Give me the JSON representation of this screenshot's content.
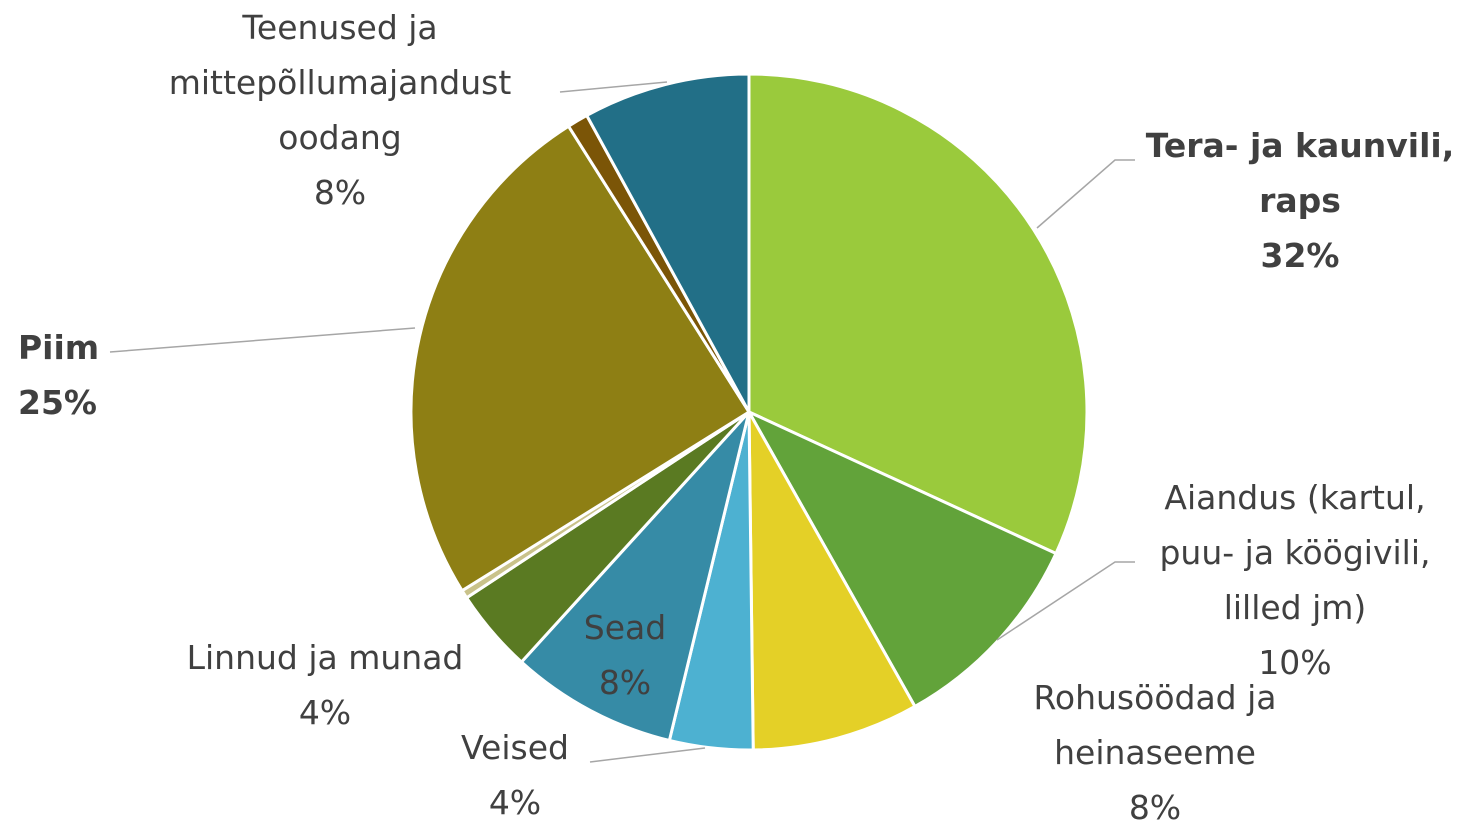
{
  "chart_data": {
    "type": "pie",
    "categories": [
      "Tera- ja kaunvili, raps",
      "Aiandus (kartul, puu- ja köögivili, lilled jm)",
      "Rohusöödad ja heinaseeme",
      "Veised",
      "Sead",
      "Linnud ja munad",
      null,
      "Piim",
      null,
      "Teenused ja mittepõllumajandust oodang"
    ],
    "values": [
      32,
      10,
      8,
      4,
      8,
      4,
      0.4,
      25,
      1,
      8
    ],
    "value_labels": [
      "32%",
      "10%",
      "8%",
      "4%",
      "8%",
      "4%",
      null,
      "25%",
      null,
      "8%"
    ],
    "colors": [
      "#9aca3c",
      "#62a33a",
      "#e4d027",
      "#4db1d1",
      "#368ba6",
      "#5a7a22",
      "#c9c28a",
      "#8e7f14",
      "#7b5507",
      "#226f87"
    ]
  }
}
